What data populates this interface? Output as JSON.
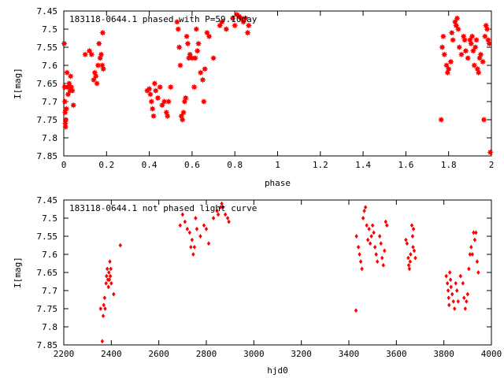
{
  "chart_data": [
    {
      "type": "scatter",
      "title": "183118-0644.1 phased with P=59.10day",
      "xlabel": "phase",
      "ylabel": "I[mag]",
      "xlim": [
        0,
        2
      ],
      "ylim": [
        7.45,
        7.85
      ],
      "y_inverted": true,
      "grid": false,
      "marker": "star",
      "color": "#ff0000",
      "x_ticks": [
        0,
        0.2,
        0.4,
        0.6,
        0.8,
        1,
        1.2,
        1.4,
        1.6,
        1.8,
        2
      ],
      "x_tick_labels": [
        "0",
        "0.2",
        "0.4",
        "0.6",
        "0.8",
        "1",
        "1.2",
        "1.4",
        "1.6",
        "1.8",
        "2"
      ],
      "y_ticks": [
        7.45,
        7.5,
        7.55,
        7.6,
        7.65,
        7.7,
        7.75,
        7.8,
        7.85
      ],
      "y_tick_labels": [
        "7.45",
        "7.5",
        "7.55",
        "7.6",
        "7.65",
        "7.7",
        "7.75",
        "7.8",
        "7.85"
      ],
      "points": [
        [
          0.002,
          7.54
        ],
        [
          0.004,
          7.66
        ],
        [
          0.005,
          7.7
        ],
        [
          0.006,
          7.73
        ],
        [
          0.007,
          7.76
        ],
        [
          0.008,
          7.77
        ],
        [
          0.01,
          7.75
        ],
        [
          0.012,
          7.72
        ],
        [
          0.015,
          7.62
        ],
        [
          0.018,
          7.66
        ],
        [
          0.02,
          7.68
        ],
        [
          0.025,
          7.65
        ],
        [
          0.03,
          7.67
        ],
        [
          0.032,
          7.63
        ],
        [
          0.035,
          7.66
        ],
        [
          0.04,
          7.67
        ],
        [
          0.045,
          7.71
        ],
        [
          0.1,
          7.57
        ],
        [
          0.12,
          7.56
        ],
        [
          0.13,
          7.57
        ],
        [
          0.14,
          7.64
        ],
        [
          0.145,
          7.62
        ],
        [
          0.15,
          7.63
        ],
        [
          0.155,
          7.65
        ],
        [
          0.16,
          7.6
        ],
        [
          0.165,
          7.54
        ],
        [
          0.17,
          7.58
        ],
        [
          0.175,
          7.57
        ],
        [
          0.18,
          7.6
        ],
        [
          0.182,
          7.51
        ],
        [
          0.185,
          7.61
        ],
        [
          0.39,
          7.67
        ],
        [
          0.4,
          7.665
        ],
        [
          0.405,
          7.68
        ],
        [
          0.41,
          7.7
        ],
        [
          0.415,
          7.72
        ],
        [
          0.42,
          7.74
        ],
        [
          0.425,
          7.65
        ],
        [
          0.43,
          7.67
        ],
        [
          0.44,
          7.69
        ],
        [
          0.45,
          7.66
        ],
        [
          0.46,
          7.71
        ],
        [
          0.47,
          7.7
        ],
        [
          0.48,
          7.73
        ],
        [
          0.485,
          7.74
        ],
        [
          0.49,
          7.7
        ],
        [
          0.5,
          7.66
        ],
        [
          0.53,
          7.48
        ],
        [
          0.535,
          7.5
        ],
        [
          0.54,
          7.55
        ],
        [
          0.545,
          7.6
        ],
        [
          0.55,
          7.74
        ],
        [
          0.555,
          7.75
        ],
        [
          0.56,
          7.73
        ],
        [
          0.565,
          7.7
        ],
        [
          0.57,
          7.69
        ],
        [
          0.575,
          7.52
        ],
        [
          0.58,
          7.54
        ],
        [
          0.585,
          7.58
        ],
        [
          0.59,
          7.57
        ],
        [
          0.6,
          7.58
        ],
        [
          0.61,
          7.66
        ],
        [
          0.615,
          7.58
        ],
        [
          0.62,
          7.5
        ],
        [
          0.625,
          7.56
        ],
        [
          0.63,
          7.54
        ],
        [
          0.64,
          7.62
        ],
        [
          0.65,
          7.64
        ],
        [
          0.655,
          7.7
        ],
        [
          0.66,
          7.61
        ],
        [
          0.67,
          7.51
        ],
        [
          0.68,
          7.52
        ],
        [
          0.7,
          7.58
        ],
        [
          0.73,
          7.49
        ],
        [
          0.74,
          7.48
        ],
        [
          0.76,
          7.5
        ],
        [
          0.79,
          7.47
        ],
        [
          0.8,
          7.49
        ],
        [
          0.81,
          7.46
        ],
        [
          0.82,
          7.465
        ],
        [
          0.83,
          7.47
        ],
        [
          0.84,
          7.48
        ],
        [
          0.85,
          7.47
        ],
        [
          0.86,
          7.51
        ],
        [
          0.865,
          7.49
        ],
        [
          1.765,
          7.75
        ],
        [
          1.77,
          7.55
        ],
        [
          1.775,
          7.52
        ],
        [
          1.78,
          7.57
        ],
        [
          1.79,
          7.6
        ],
        [
          1.795,
          7.62
        ],
        [
          1.8,
          7.61
        ],
        [
          1.81,
          7.59
        ],
        [
          1.815,
          7.51
        ],
        [
          1.82,
          7.53
        ],
        [
          1.83,
          7.48
        ],
        [
          1.835,
          7.49
        ],
        [
          1.84,
          7.47
        ],
        [
          1.845,
          7.5
        ],
        [
          1.85,
          7.55
        ],
        [
          1.86,
          7.57
        ],
        [
          1.87,
          7.52
        ],
        [
          1.875,
          7.53
        ],
        [
          1.88,
          7.56
        ],
        [
          1.89,
          7.58
        ],
        [
          1.9,
          7.53
        ],
        [
          1.905,
          7.54
        ],
        [
          1.91,
          7.52
        ],
        [
          1.915,
          7.56
        ],
        [
          1.92,
          7.6
        ],
        [
          1.925,
          7.55
        ],
        [
          1.93,
          7.53
        ],
        [
          1.935,
          7.61
        ],
        [
          1.94,
          7.62
        ],
        [
          1.945,
          7.58
        ],
        [
          1.95,
          7.57
        ],
        [
          1.96,
          7.59
        ],
        [
          1.965,
          7.75
        ],
        [
          1.97,
          7.52
        ],
        [
          1.975,
          7.49
        ],
        [
          1.98,
          7.5
        ],
        [
          1.985,
          7.53
        ],
        [
          1.99,
          7.54
        ],
        [
          1.995,
          7.84
        ]
      ]
    },
    {
      "type": "scatter",
      "title": "183118-0644.1 not phased light curve",
      "xlabel": "hjd0",
      "ylabel": "I[mag]",
      "xlim": [
        2200,
        4000
      ],
      "ylim": [
        7.45,
        7.85
      ],
      "y_inverted": true,
      "grid": false,
      "marker": "diamond",
      "color": "#ff0000",
      "x_ticks": [
        2200,
        2400,
        2600,
        2800,
        3000,
        3200,
        3400,
        3600,
        3800,
        4000
      ],
      "x_tick_labels": [
        "2200",
        "2400",
        "2600",
        "2800",
        "3000",
        "3200",
        "3400",
        "3600",
        "3800",
        "4000"
      ],
      "y_ticks": [
        7.45,
        7.5,
        7.55,
        7.6,
        7.65,
        7.7,
        7.75,
        7.8,
        7.85
      ],
      "y_tick_labels": [
        "7.45",
        "7.5",
        "7.55",
        "7.6",
        "7.65",
        "7.7",
        "7.75",
        "7.8",
        "7.85"
      ],
      "points": [
        [
          2355,
          7.75
        ],
        [
          2362,
          7.84
        ],
        [
          2366,
          7.77
        ],
        [
          2368,
          7.74
        ],
        [
          2372,
          7.72
        ],
        [
          2374,
          7.75
        ],
        [
          2378,
          7.68
        ],
        [
          2380,
          7.66
        ],
        [
          2383,
          7.64
        ],
        [
          2386,
          7.67
        ],
        [
          2388,
          7.69
        ],
        [
          2390,
          7.65
        ],
        [
          2392,
          7.67
        ],
        [
          2394,
          7.62
        ],
        [
          2396,
          7.66
        ],
        [
          2398,
          7.64
        ],
        [
          2400,
          7.68
        ],
        [
          2410,
          7.71
        ],
        [
          2438,
          7.575
        ],
        [
          2690,
          7.52
        ],
        [
          2700,
          7.49
        ],
        [
          2710,
          7.51
        ],
        [
          2720,
          7.53
        ],
        [
          2730,
          7.54
        ],
        [
          2735,
          7.58
        ],
        [
          2740,
          7.56
        ],
        [
          2745,
          7.6
        ],
        [
          2750,
          7.58
        ],
        [
          2755,
          7.5
        ],
        [
          2760,
          7.53
        ],
        [
          2775,
          7.55
        ],
        [
          2790,
          7.52
        ],
        [
          2800,
          7.53
        ],
        [
          2810,
          7.57
        ],
        [
          2830,
          7.5
        ],
        [
          2845,
          7.48
        ],
        [
          2850,
          7.49
        ],
        [
          2860,
          7.47
        ],
        [
          2865,
          7.46
        ],
        [
          2870,
          7.47
        ],
        [
          2880,
          7.49
        ],
        [
          2890,
          7.5
        ],
        [
          2895,
          7.51
        ],
        [
          3430,
          7.755
        ],
        [
          3432,
          7.55
        ],
        [
          3440,
          7.58
        ],
        [
          3445,
          7.6
        ],
        [
          3450,
          7.62
        ],
        [
          3455,
          7.64
        ],
        [
          3460,
          7.5
        ],
        [
          3465,
          7.48
        ],
        [
          3470,
          7.47
        ],
        [
          3475,
          7.52
        ],
        [
          3480,
          7.56
        ],
        [
          3485,
          7.53
        ],
        [
          3490,
          7.57
        ],
        [
          3495,
          7.55
        ],
        [
          3500,
          7.52
        ],
        [
          3505,
          7.54
        ],
        [
          3510,
          7.58
        ],
        [
          3515,
          7.6
        ],
        [
          3520,
          7.62
        ],
        [
          3530,
          7.55
        ],
        [
          3535,
          7.57
        ],
        [
          3540,
          7.61
        ],
        [
          3545,
          7.63
        ],
        [
          3550,
          7.59
        ],
        [
          3555,
          7.51
        ],
        [
          3560,
          7.52
        ],
        [
          3640,
          7.56
        ],
        [
          3645,
          7.57
        ],
        [
          3650,
          7.61
        ],
        [
          3652,
          7.63
        ],
        [
          3655,
          7.64
        ],
        [
          3658,
          7.62
        ],
        [
          3660,
          7.6
        ],
        [
          3665,
          7.52
        ],
        [
          3668,
          7.55
        ],
        [
          3670,
          7.58
        ],
        [
          3672,
          7.53
        ],
        [
          3675,
          7.59
        ],
        [
          3680,
          7.61
        ],
        [
          3810,
          7.66
        ],
        [
          3815,
          7.68
        ],
        [
          3818,
          7.7
        ],
        [
          3820,
          7.72
        ],
        [
          3822,
          7.74
        ],
        [
          3825,
          7.65
        ],
        [
          3828,
          7.67
        ],
        [
          3830,
          7.69
        ],
        [
          3835,
          7.71
        ],
        [
          3840,
          7.73
        ],
        [
          3845,
          7.75
        ],
        [
          3850,
          7.68
        ],
        [
          3855,
          7.7
        ],
        [
          3860,
          7.73
        ],
        [
          3870,
          7.66
        ],
        [
          3880,
          7.68
        ],
        [
          3885,
          7.72
        ],
        [
          3890,
          7.75
        ],
        [
          3895,
          7.73
        ],
        [
          3900,
          7.71
        ],
        [
          3905,
          7.64
        ],
        [
          3910,
          7.6
        ],
        [
          3915,
          7.58
        ],
        [
          3920,
          7.6
        ],
        [
          3925,
          7.54
        ],
        [
          3930,
          7.56
        ],
        [
          3935,
          7.54
        ],
        [
          3940,
          7.62
        ],
        [
          3945,
          7.65
        ]
      ]
    }
  ]
}
